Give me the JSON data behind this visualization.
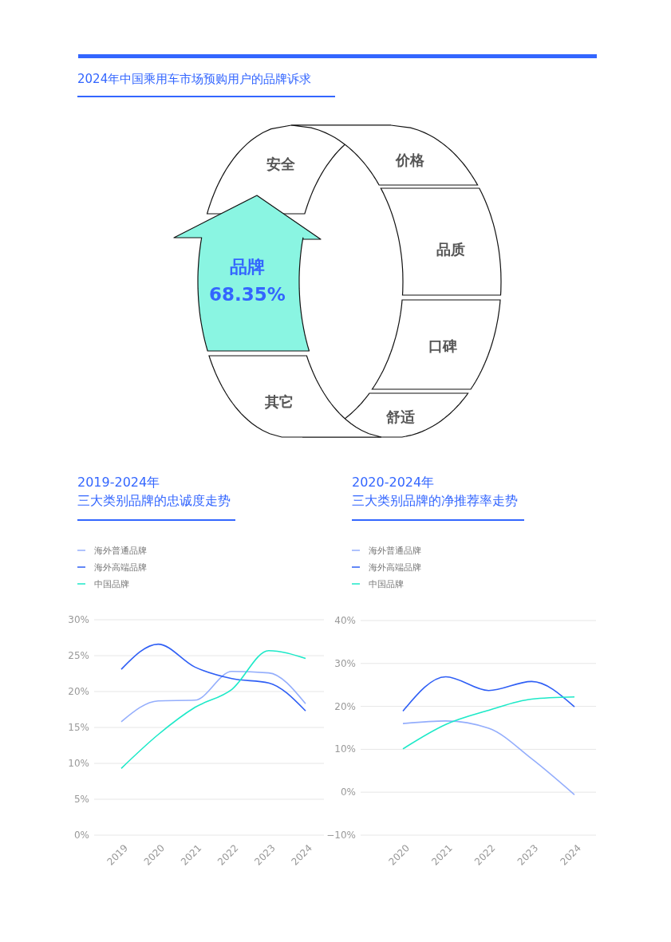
{
  "chart_data": [
    {
      "type": "other",
      "title": "2024年中国乘用车市场预购用户的品牌诉求",
      "categories": [
        "安全",
        "价格",
        "品质",
        "口碑",
        "舒适",
        "其它",
        "品牌"
      ],
      "annotations": [
        "68.35%"
      ]
    },
    {
      "type": "line",
      "title": "2019-2024年",
      "subtitle": "三大类别品牌的忠诚度走势",
      "categories": [
        "2019",
        "2020",
        "2021",
        "2022",
        "2023",
        "2024"
      ],
      "ylim": [
        0,
        30
      ],
      "yticks": [
        {
          "value": 0,
          "label": "0%"
        },
        {
          "value": 5,
          "label": "5%"
        },
        {
          "value": 10,
          "label": "10%"
        },
        {
          "value": 15,
          "label": "15%"
        },
        {
          "value": 20,
          "label": "20%"
        },
        {
          "value": 25,
          "label": "25%"
        },
        {
          "value": 30,
          "label": "30%"
        }
      ],
      "grid": "y",
      "legend": "top left",
      "marker": "none",
      "series": [
        {
          "name": "海外普通品牌",
          "color": "#94aefc",
          "values": [
            15.8,
            18.7,
            18.8,
            22.8,
            22.6,
            18.3
          ]
        },
        {
          "name": "海外高端品牌",
          "color": "#2f5ff5",
          "values": [
            23.1,
            26.6,
            23.4,
            21.8,
            21.2,
            17.3
          ]
        },
        {
          "name": "中国品牌",
          "color": "#1de9c8",
          "values": [
            9.3,
            14.0,
            17.8,
            20.3,
            25.7,
            24.6
          ]
        }
      ]
    },
    {
      "type": "line",
      "title": "2020-2024年",
      "subtitle": "三大类别品牌的净推荐率走势",
      "categories": [
        "2020",
        "2021",
        "2022",
        "2023",
        "2024"
      ],
      "ylim": [
        -10,
        40
      ],
      "yticks": [
        {
          "value": -10,
          "label": "−10%"
        },
        {
          "value": 0,
          "label": "0%"
        },
        {
          "value": 10,
          "label": "10%"
        },
        {
          "value": 20,
          "label": "20%"
        },
        {
          "value": 30,
          "label": "30%"
        },
        {
          "value": 40,
          "label": "40%"
        }
      ],
      "grid": "y",
      "legend": "top left",
      "marker": "none",
      "series": [
        {
          "name": "海外普通品牌",
          "color": "#94aefc",
          "values": [
            16.0,
            16.6,
            14.9,
            7.8,
            -0.6
          ]
        },
        {
          "name": "海外高端品牌",
          "color": "#2f5ff5",
          "values": [
            18.9,
            26.9,
            23.7,
            25.8,
            19.9
          ]
        },
        {
          "name": "中国品牌",
          "color": "#1de9c8",
          "values": [
            10.1,
            15.8,
            19.1,
            21.7,
            22.2
          ]
        }
      ]
    }
  ]
}
